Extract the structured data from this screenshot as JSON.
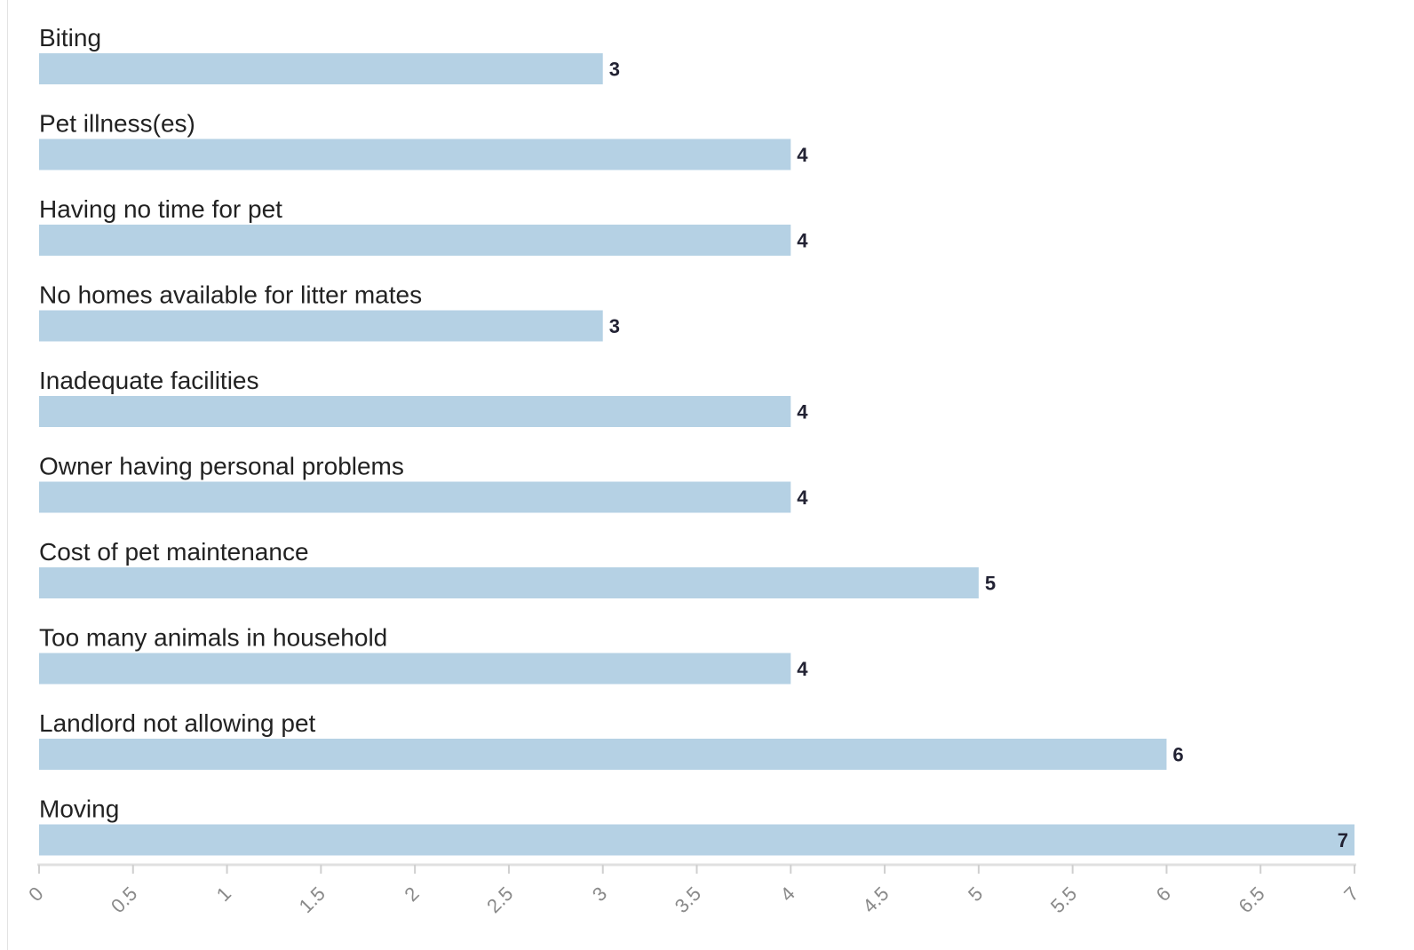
{
  "chart_data": {
    "type": "bar",
    "orientation": "horizontal",
    "categories": [
      "Biting",
      "Pet illness(es)",
      "Having no time for pet",
      "No homes available for litter mates",
      "Inadequate facilities",
      "Owner having personal problems",
      "Cost of pet maintenance",
      "Too many animals in household",
      "Landlord not allowing pet",
      "Moving"
    ],
    "values": [
      3,
      4,
      4,
      3,
      4,
      4,
      5,
      4,
      6,
      7
    ],
    "xlim": [
      0,
      7
    ],
    "xticks": [
      0,
      0.5,
      1,
      1.5,
      2,
      2.5,
      3,
      3.5,
      4,
      4.5,
      5,
      5.5,
      6,
      6.5,
      7
    ],
    "title": "",
    "xlabel": "",
    "ylabel": "",
    "bar_color": "#b5d1e4",
    "grid": false,
    "legend": false
  }
}
